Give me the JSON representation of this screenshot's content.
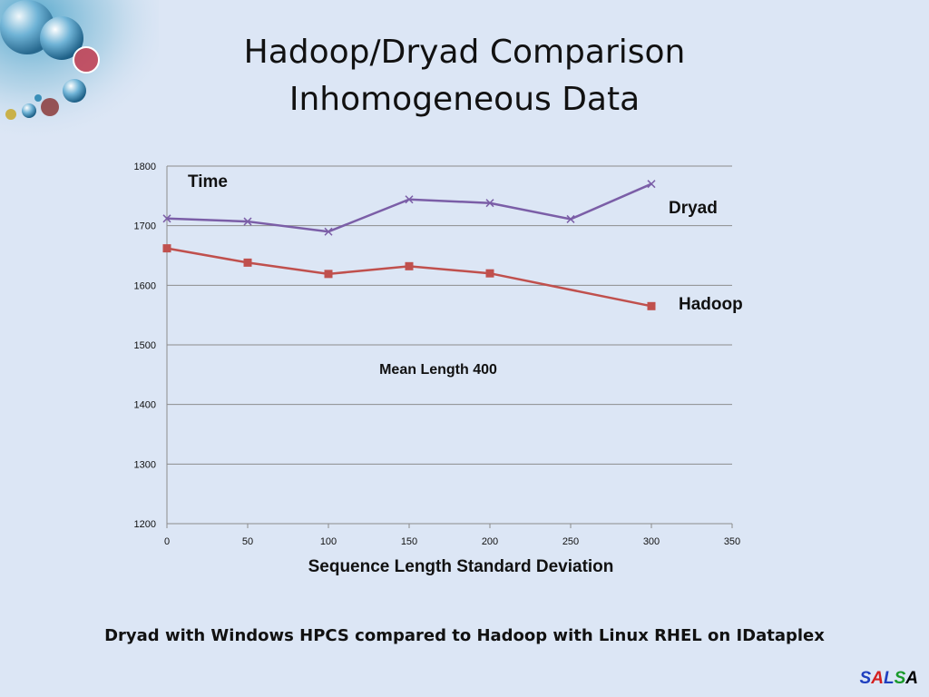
{
  "slide": {
    "title_line1": "Hadoop/Dryad Comparison",
    "title_line2": "Inhomogeneous Data",
    "footer": "Dryad with Windows HPCS compared to Hadoop with Linux RHEL on IDataplex",
    "logo_text": "SALSA"
  },
  "chart_data": {
    "type": "line",
    "title": "",
    "ylabel": "Time",
    "xlabel": "Sequence Length Standard Deviation",
    "annotation": "Mean Length 400",
    "xlim": [
      0,
      350
    ],
    "ylim": [
      1200,
      1800
    ],
    "x_ticks": [
      0,
      50,
      100,
      150,
      200,
      250,
      300,
      350
    ],
    "y_ticks": [
      1200,
      1300,
      1400,
      1500,
      1600,
      1700,
      1800
    ],
    "grid": true,
    "series": [
      {
        "name": "Dryad",
        "color": "#7b5ea7",
        "marker": "x",
        "x": [
          0,
          50,
          100,
          150,
          200,
          250,
          300
        ],
        "y": [
          1712,
          1707,
          1690,
          1744,
          1738,
          1711,
          1770
        ]
      },
      {
        "name": "Hadoop",
        "color": "#c0504d",
        "marker": "square",
        "x": [
          0,
          50,
          100,
          150,
          200,
          300
        ],
        "y": [
          1662,
          1638,
          1619,
          1632,
          1620,
          1565
        ]
      }
    ]
  }
}
